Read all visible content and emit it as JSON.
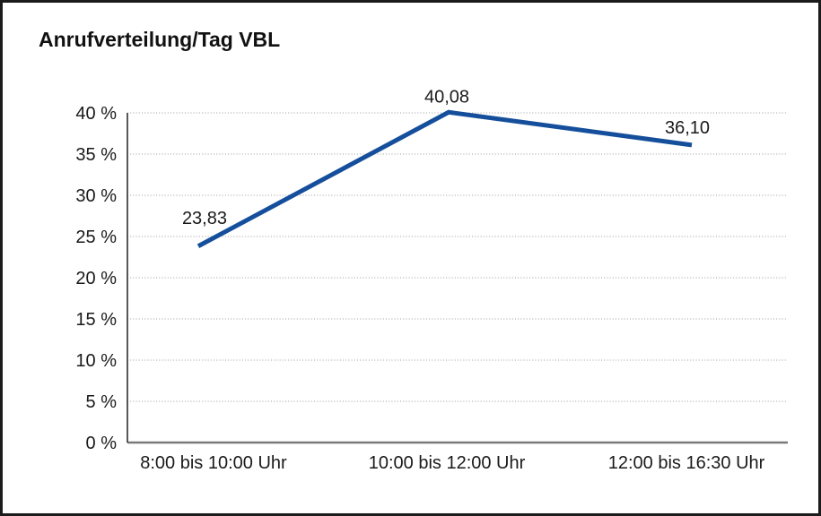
{
  "chart_data": {
    "type": "line",
    "title": "Anrufverteilung/Tag VBL",
    "categories": [
      "8:00 bis 10:00 Uhr",
      "10:00 bis 12:00 Uhr",
      "12:00 bis 16:30 Uhr"
    ],
    "values": [
      23.83,
      40.08,
      36.1
    ],
    "point_labels": [
      "23,83",
      "40,08",
      "36,10"
    ],
    "xlabel": "",
    "ylabel": "",
    "ylim": [
      0,
      40
    ],
    "ytick_step": 5,
    "ytick_labels": [
      "0 %",
      "5 %",
      "10 %",
      "15 %",
      "20 %",
      "25 %",
      "30 %",
      "35 %",
      "40 %"
    ],
    "grid": "horizontal-dotted",
    "legend": "none",
    "line_color": "#154F9C"
  },
  "colors": {
    "line": "#154F9C",
    "gridline": "#9c9c9c",
    "zero_line": "#7a7a7a",
    "axis": "#2f2f2f",
    "text": "#1a1a1a",
    "frame_border": "#1b1b1b",
    "background": "#ffffff"
  }
}
